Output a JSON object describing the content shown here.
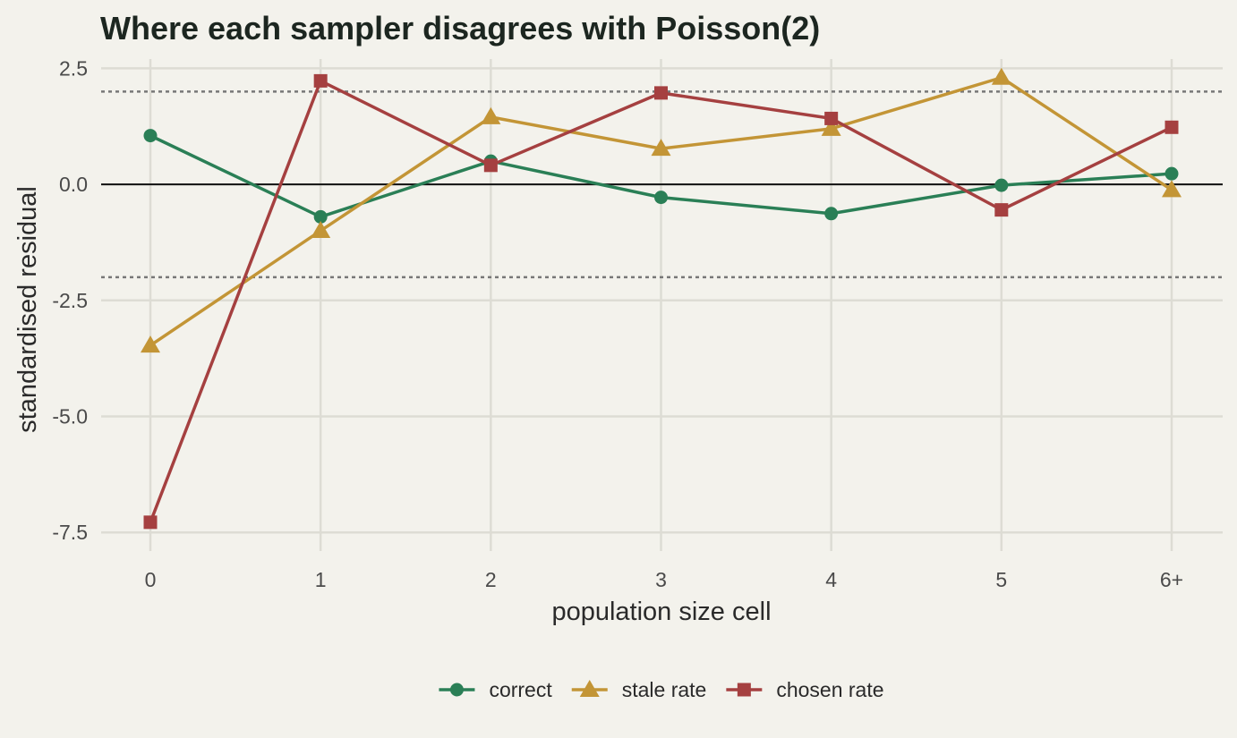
{
  "chart_data": {
    "type": "line",
    "title": "Where each sampler disagrees with Poisson(2)",
    "xlabel": "population size cell",
    "ylabel": "standardised residual",
    "categories": [
      "0",
      "1",
      "2",
      "3",
      "4",
      "5",
      "6+"
    ],
    "ylim": [
      -7.9,
      2.7
    ],
    "yticks": [
      2.5,
      0.0,
      -2.5,
      -5.0,
      -7.5
    ],
    "ytick_labels": [
      "2.5",
      "0.0",
      "-2.5",
      "-5.0",
      "-7.5"
    ],
    "reference_lines": [
      {
        "y": 0,
        "style": "solid",
        "color": "#111111"
      },
      {
        "y": 2,
        "style": "dotted",
        "color": "#777777"
      },
      {
        "y": -2,
        "style": "dotted",
        "color": "#777777"
      }
    ],
    "grid": true,
    "legend_position": "bottom",
    "series": [
      {
        "name": "correct",
        "color": "#2a7f56",
        "marker": "circle",
        "values": [
          1.05,
          -0.7,
          0.5,
          -0.28,
          -0.63,
          -0.02,
          0.23
        ]
      },
      {
        "name": "stale rate",
        "color": "#c39536",
        "marker": "triangle",
        "values": [
          -3.47,
          -1.0,
          1.45,
          0.77,
          1.2,
          2.3,
          -0.12
        ]
      },
      {
        "name": "chosen rate",
        "color": "#a54040",
        "marker": "square",
        "values": [
          -7.28,
          2.23,
          0.41,
          1.97,
          1.42,
          -0.55,
          1.23
        ]
      }
    ]
  }
}
